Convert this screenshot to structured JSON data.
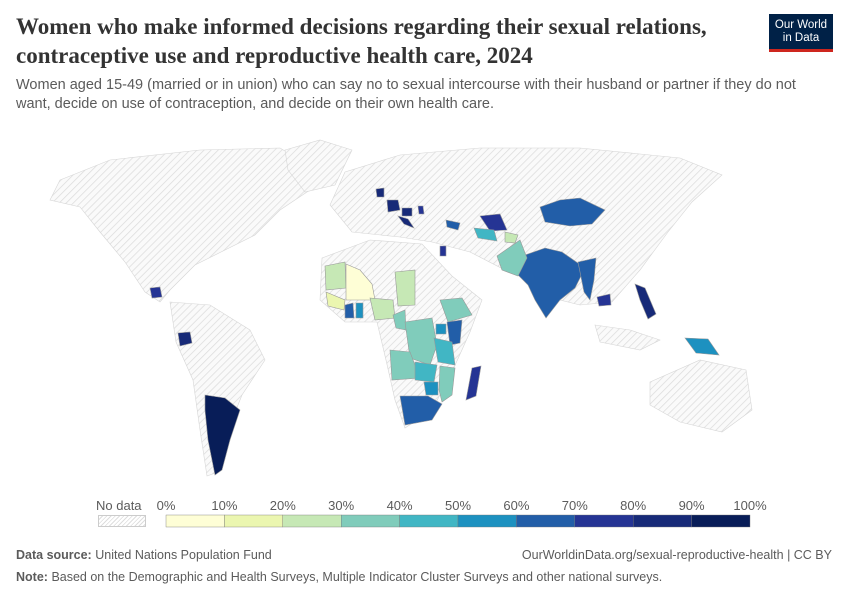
{
  "title": "Women who make informed decisions regarding their sexual relations, contraceptive use and reproductive health care, 2024",
  "subtitle": "Women aged 15-49 (married or in union) who can say no to sexual intercourse with their husband or partner if they do not want, decide on use of contraception, and decide on their own health care.",
  "logo": {
    "line1": "Our World",
    "line2": "in Data",
    "bg": "#002147",
    "accent": "#ce261e"
  },
  "footer": {
    "source_label": "Data source:",
    "source": "United Nations Population Fund",
    "url": "OurWorldinData.org/sexual-reproductive-health | CC BY",
    "note_label": "Note:",
    "note": "Based on the Demographic and Health Surveys, Multiple Indicator Cluster Surveys and other national surveys."
  },
  "chart_data": {
    "type": "choropleth",
    "year": 2024,
    "unit": "%",
    "legend": {
      "no_data_label": "No data",
      "ticks": [
        "0%",
        "10%",
        "20%",
        "30%",
        "40%",
        "50%",
        "60%",
        "70%",
        "80%",
        "90%",
        "100%"
      ],
      "bins": [
        0,
        10,
        20,
        30,
        40,
        50,
        60,
        70,
        80,
        90,
        100
      ],
      "colors": [
        "#fefed6",
        "#ebf6b0",
        "#c6e8b5",
        "#80ccbb",
        "#41b6c4",
        "#1d91c0",
        "#225ea8",
        "#253494",
        "#172a78",
        "#081d58"
      ],
      "no_data_color": "hatched-gray"
    },
    "countries": [
      {
        "name": "Argentina",
        "value": 95
      },
      {
        "name": "Ecuador",
        "value": 85
      },
      {
        "name": "Guatemala",
        "value": 75
      },
      {
        "name": "Mongolia",
        "value": 65
      },
      {
        "name": "India",
        "value": 65
      },
      {
        "name": "Myanmar",
        "value": 65
      },
      {
        "name": "Pakistan",
        "value": 35
      },
      {
        "name": "Uzbekistan",
        "value": 75
      },
      {
        "name": "Turkmenistan",
        "value": 45
      },
      {
        "name": "Tajikistan",
        "value": 25
      },
      {
        "name": "Cambodia",
        "value": 75
      },
      {
        "name": "Philippines",
        "value": 85
      },
      {
        "name": "Papua New Guinea",
        "value": 55
      },
      {
        "name": "Denmark",
        "value": 85
      },
      {
        "name": "Germany",
        "value": 85
      },
      {
        "name": "Hungary",
        "value": 85
      },
      {
        "name": "Croatia",
        "value": 85
      },
      {
        "name": "Moldova",
        "value": 75
      },
      {
        "name": "Georgia",
        "value": 65
      },
      {
        "name": "Jordan",
        "value": 75
      },
      {
        "name": "Mauritania",
        "value": 25
      },
      {
        "name": "Mali",
        "value": 5
      },
      {
        "name": "Guinea",
        "value": 15
      },
      {
        "name": "Cote d'Ivoire",
        "value": 65
      },
      {
        "name": "Ghana",
        "value": 55
      },
      {
        "name": "Nigeria",
        "value": 25
      },
      {
        "name": "Chad",
        "value": 25
      },
      {
        "name": "Cameroon",
        "value": 35
      },
      {
        "name": "Democratic Republic of Congo",
        "value": 35
      },
      {
        "name": "Angola",
        "value": 35
      },
      {
        "name": "Ethiopia",
        "value": 35
      },
      {
        "name": "Kenya",
        "value": 65
      },
      {
        "name": "Uganda",
        "value": 55
      },
      {
        "name": "Tanzania",
        "value": 45
      },
      {
        "name": "Zambia",
        "value": 45
      },
      {
        "name": "Zimbabwe",
        "value": 55
      },
      {
        "name": "Mozambique",
        "value": 35
      },
      {
        "name": "South Africa",
        "value": 65
      },
      {
        "name": "Madagascar",
        "value": 75
      }
    ]
  }
}
